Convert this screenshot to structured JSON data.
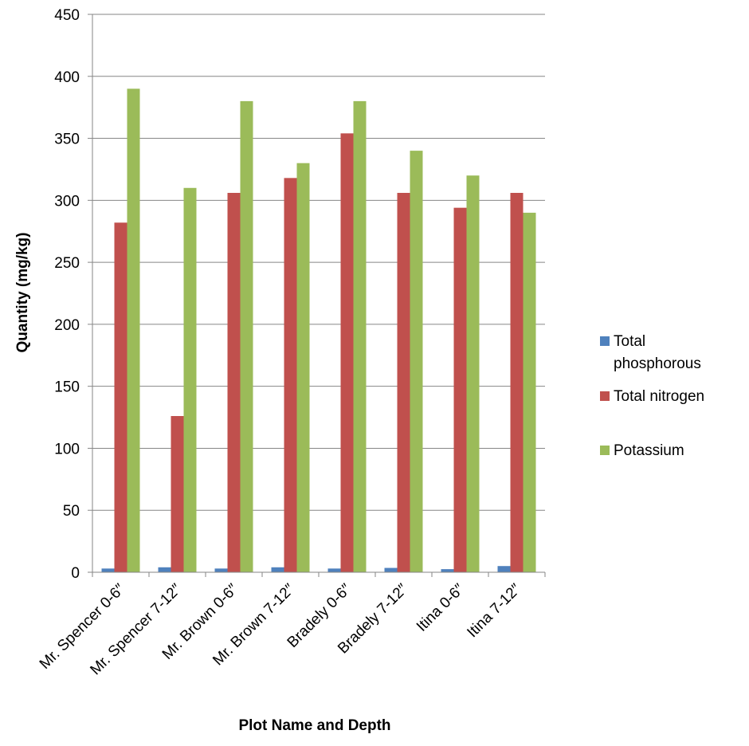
{
  "chart_data": {
    "type": "bar",
    "title": "",
    "xlabel": "Plot Name and Depth",
    "ylabel": "Quantity (mg/kg)",
    "ylim": [
      0,
      450
    ],
    "yticks": [
      0,
      50,
      100,
      150,
      200,
      250,
      300,
      350,
      400,
      450
    ],
    "grid": true,
    "legend_position": "right",
    "categories": [
      "Mr. Spencer 0-6″",
      "Mr. Spencer 7-12″",
      "Mr. Brown 0-6″",
      "Mr. Brown 7-12″",
      "Bradely 0-6″",
      "Bradely 7-12″",
      "Itina 0-6″",
      "Itina 7-12″"
    ],
    "series": [
      {
        "name": "Total phosphorous",
        "legend_lines": [
          "Total",
          "phosphorous"
        ],
        "color": "#4F81BD",
        "values": [
          3,
          4,
          3,
          4,
          3,
          3.5,
          2.5,
          5
        ]
      },
      {
        "name": "Total nitrogen",
        "legend_lines": [
          "Total nitrogen"
        ],
        "color": "#C0504D",
        "values": [
          282,
          126,
          306,
          318,
          354,
          306,
          294,
          306
        ]
      },
      {
        "name": "Potassium",
        "legend_lines": [
          "Potassium"
        ],
        "color": "#9BBB59",
        "values": [
          390,
          310,
          380,
          330,
          380,
          340,
          320,
          290
        ]
      }
    ]
  }
}
